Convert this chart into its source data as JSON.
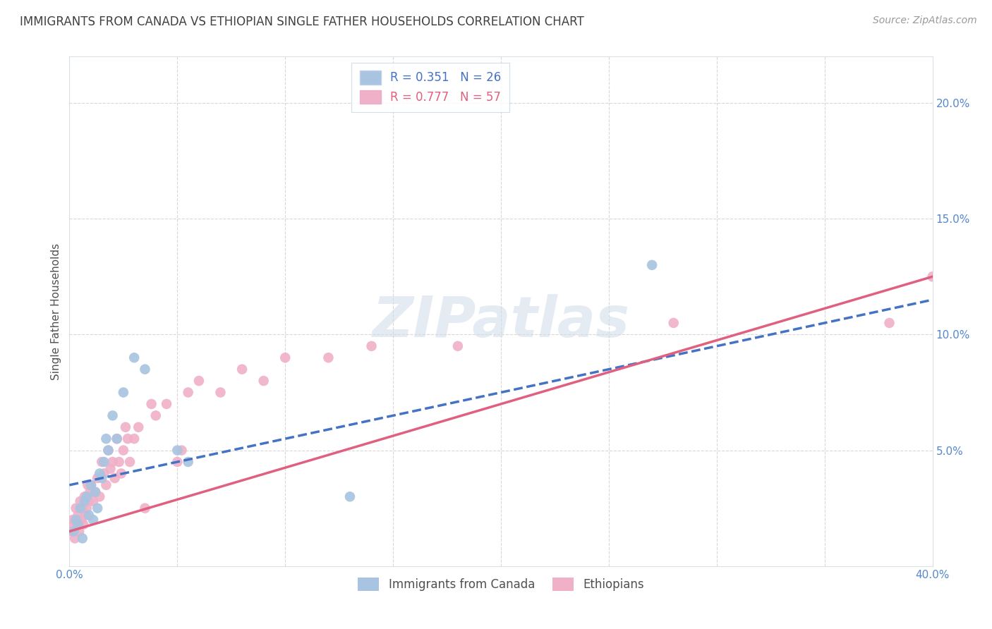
{
  "title": "IMMIGRANTS FROM CANADA VS ETHIOPIAN SINGLE FATHER HOUSEHOLDS CORRELATION CHART",
  "source": "Source: ZipAtlas.com",
  "ylabel": "Single Father Households",
  "xlim": [
    0,
    40
  ],
  "ylim": [
    0,
    22
  ],
  "legend_canada_r": "0.351",
  "legend_canada_n": "26",
  "legend_ethiopian_r": "0.777",
  "legend_ethiopian_n": "57",
  "blue_color": "#a8c4e0",
  "pink_color": "#f0b0c8",
  "blue_line_color": "#4472c4",
  "pink_line_color": "#e06080",
  "title_color": "#404040",
  "axis_tick_color": "#5588cc",
  "grid_color": "#d8d8d8",
  "watermark": "ZIPatlas",
  "canada_points": [
    [
      0.2,
      1.5
    ],
    [
      0.3,
      2.0
    ],
    [
      0.4,
      1.8
    ],
    [
      0.5,
      2.5
    ],
    [
      0.6,
      1.2
    ],
    [
      0.7,
      2.8
    ],
    [
      0.8,
      3.0
    ],
    [
      0.9,
      2.2
    ],
    [
      1.0,
      3.5
    ],
    [
      1.1,
      2.0
    ],
    [
      1.2,
      3.2
    ],
    [
      1.3,
      2.5
    ],
    [
      1.4,
      4.0
    ],
    [
      1.5,
      3.8
    ],
    [
      1.6,
      4.5
    ],
    [
      1.7,
      5.5
    ],
    [
      1.8,
      5.0
    ],
    [
      2.0,
      6.5
    ],
    [
      2.2,
      5.5
    ],
    [
      2.5,
      7.5
    ],
    [
      3.0,
      9.0
    ],
    [
      3.5,
      8.5
    ],
    [
      5.0,
      5.0
    ],
    [
      5.5,
      4.5
    ],
    [
      13.0,
      3.0
    ],
    [
      27.0,
      13.0
    ]
  ],
  "ethiopian_points": [
    [
      0.1,
      1.5
    ],
    [
      0.15,
      2.0
    ],
    [
      0.2,
      1.8
    ],
    [
      0.25,
      1.2
    ],
    [
      0.3,
      2.5
    ],
    [
      0.35,
      1.8
    ],
    [
      0.4,
      2.2
    ],
    [
      0.45,
      1.5
    ],
    [
      0.5,
      2.8
    ],
    [
      0.55,
      2.0
    ],
    [
      0.6,
      2.5
    ],
    [
      0.65,
      1.8
    ],
    [
      0.7,
      3.0
    ],
    [
      0.75,
      2.2
    ],
    [
      0.8,
      2.5
    ],
    [
      0.85,
      3.5
    ],
    [
      0.9,
      2.8
    ],
    [
      0.95,
      3.2
    ],
    [
      1.0,
      3.5
    ],
    [
      1.1,
      2.8
    ],
    [
      1.2,
      3.2
    ],
    [
      1.3,
      3.8
    ],
    [
      1.4,
      3.0
    ],
    [
      1.5,
      4.5
    ],
    [
      1.6,
      4.0
    ],
    [
      1.7,
      3.5
    ],
    [
      1.8,
      5.0
    ],
    [
      1.9,
      4.2
    ],
    [
      2.0,
      4.5
    ],
    [
      2.1,
      3.8
    ],
    [
      2.2,
      5.5
    ],
    [
      2.3,
      4.5
    ],
    [
      2.4,
      4.0
    ],
    [
      2.5,
      5.0
    ],
    [
      2.6,
      6.0
    ],
    [
      2.7,
      5.5
    ],
    [
      2.8,
      4.5
    ],
    [
      3.0,
      5.5
    ],
    [
      3.2,
      6.0
    ],
    [
      3.5,
      2.5
    ],
    [
      3.8,
      7.0
    ],
    [
      4.0,
      6.5
    ],
    [
      4.5,
      7.0
    ],
    [
      5.0,
      4.5
    ],
    [
      5.2,
      5.0
    ],
    [
      5.5,
      7.5
    ],
    [
      6.0,
      8.0
    ],
    [
      7.0,
      7.5
    ],
    [
      8.0,
      8.5
    ],
    [
      9.0,
      8.0
    ],
    [
      10.0,
      9.0
    ],
    [
      12.0,
      9.0
    ],
    [
      14.0,
      9.5
    ],
    [
      18.0,
      9.5
    ],
    [
      28.0,
      10.5
    ],
    [
      38.0,
      10.5
    ],
    [
      40.0,
      12.5
    ]
  ],
  "canada_line": [
    0.0,
    3.5,
    40.0,
    11.5
  ],
  "ethiopian_line": [
    0.0,
    1.5,
    40.0,
    12.5
  ],
  "xtick_positions": [
    0,
    5,
    10,
    15,
    20,
    25,
    30,
    35,
    40
  ],
  "xtick_labels_show": [
    "0.0%",
    "",
    "",
    "",
    "",
    "",
    "",
    "",
    "40.0%"
  ],
  "ytick_positions": [
    5,
    10,
    15,
    20
  ],
  "ytick_labels": [
    "5.0%",
    "10.0%",
    "15.0%",
    "20.0%"
  ]
}
